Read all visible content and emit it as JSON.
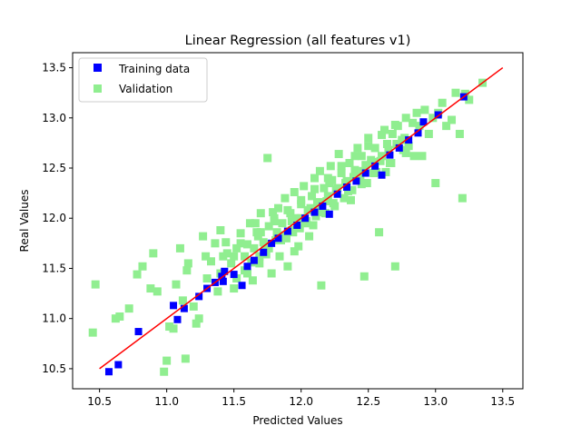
{
  "chart_data": {
    "type": "scatter",
    "title": "Linear Regression (all features v1)",
    "xlabel": "Predicted Values",
    "ylabel": "Real Values",
    "xlim": [
      10.3,
      13.65
    ],
    "ylim": [
      10.3,
      13.65
    ],
    "xticks": [
      "10.5",
      "11.0",
      "11.5",
      "12.0",
      "12.5",
      "13.0",
      "13.5"
    ],
    "yticks": [
      "10.5",
      "11.0",
      "11.5",
      "12.0",
      "12.5",
      "13.0",
      "13.5"
    ],
    "legend_position": "upper-left",
    "grid": false,
    "series": [
      {
        "name": "Training data",
        "marker": "square",
        "color": "#0000ff",
        "points": [
          [
            10.57,
            10.47
          ],
          [
            10.64,
            10.54
          ],
          [
            10.79,
            10.87
          ],
          [
            11.05,
            11.13
          ],
          [
            11.08,
            10.99
          ],
          [
            11.13,
            11.1
          ],
          [
            11.24,
            11.22
          ],
          [
            11.3,
            11.3
          ],
          [
            11.36,
            11.36
          ],
          [
            11.41,
            11.42
          ],
          [
            11.43,
            11.47
          ],
          [
            11.42,
            11.37
          ],
          [
            11.5,
            11.44
          ],
          [
            11.56,
            11.33
          ],
          [
            11.6,
            11.52
          ],
          [
            11.65,
            11.58
          ],
          [
            11.72,
            11.66
          ],
          [
            11.78,
            11.75
          ],
          [
            11.83,
            11.8
          ],
          [
            11.9,
            11.87
          ],
          [
            11.97,
            11.93
          ],
          [
            12.03,
            12.0
          ],
          [
            12.1,
            12.06
          ],
          [
            12.16,
            12.12
          ],
          [
            12.21,
            12.04
          ],
          [
            12.27,
            12.24
          ],
          [
            12.34,
            12.31
          ],
          [
            12.41,
            12.37
          ],
          [
            12.48,
            12.45
          ],
          [
            12.55,
            12.52
          ],
          [
            12.6,
            12.43
          ],
          [
            12.66,
            12.63
          ],
          [
            12.73,
            12.7
          ],
          [
            12.8,
            12.78
          ],
          [
            12.87,
            12.85
          ],
          [
            12.91,
            12.96
          ],
          [
            13.02,
            13.03
          ],
          [
            13.21,
            13.21
          ]
        ]
      },
      {
        "name": "Validation",
        "marker": "square",
        "color": "#90ee90",
        "points": [
          [
            10.45,
            10.86
          ],
          [
            10.47,
            11.34
          ],
          [
            10.62,
            11.0
          ],
          [
            10.65,
            11.02
          ],
          [
            10.72,
            11.1
          ],
          [
            10.78,
            11.44
          ],
          [
            10.82,
            11.52
          ],
          [
            10.88,
            11.3
          ],
          [
            10.9,
            11.65
          ],
          [
            10.93,
            11.27
          ],
          [
            10.98,
            10.47
          ],
          [
            11.0,
            10.58
          ],
          [
            11.02,
            10.92
          ],
          [
            11.05,
            10.9
          ],
          [
            11.07,
            11.34
          ],
          [
            11.1,
            11.7
          ],
          [
            11.12,
            11.18
          ],
          [
            11.14,
            10.6
          ],
          [
            11.15,
            11.48
          ],
          [
            11.16,
            11.55
          ],
          [
            11.2,
            11.12
          ],
          [
            11.22,
            10.95
          ],
          [
            11.24,
            11.0
          ],
          [
            11.27,
            11.82
          ],
          [
            11.29,
            11.62
          ],
          [
            11.3,
            11.4
          ],
          [
            11.33,
            11.57
          ],
          [
            11.36,
            11.75
          ],
          [
            11.38,
            11.27
          ],
          [
            11.4,
            11.88
          ],
          [
            11.42,
            11.62
          ],
          [
            11.44,
            11.76
          ],
          [
            11.48,
            11.55
          ],
          [
            11.5,
            11.3
          ],
          [
            11.52,
            11.7
          ],
          [
            11.55,
            11.85
          ],
          [
            11.58,
            11.62
          ],
          [
            11.6,
            11.45
          ],
          [
            11.62,
            11.95
          ],
          [
            11.64,
            11.38
          ],
          [
            11.65,
            11.7
          ],
          [
            11.67,
            11.86
          ],
          [
            11.69,
            11.55
          ],
          [
            11.7,
            12.05
          ],
          [
            11.72,
            11.76
          ],
          [
            11.74,
            11.64
          ],
          [
            11.75,
            12.6
          ],
          [
            11.76,
            11.92
          ],
          [
            11.78,
            11.45
          ],
          [
            11.8,
            12.0
          ],
          [
            11.81,
            11.78
          ],
          [
            11.83,
            12.1
          ],
          [
            11.84,
            11.62
          ],
          [
            11.86,
            11.95
          ],
          [
            11.88,
            12.2
          ],
          [
            11.89,
            11.8
          ],
          [
            11.9,
            11.52
          ],
          [
            11.92,
            12.05
          ],
          [
            11.93,
            11.88
          ],
          [
            11.95,
            12.26
          ],
          [
            11.96,
            12.0
          ],
          [
            11.98,
            11.72
          ],
          [
            11.99,
            11.9
          ],
          [
            12.0,
            12.14
          ],
          [
            12.02,
            12.32
          ],
          [
            12.03,
            11.95
          ],
          [
            12.05,
            12.08
          ],
          [
            12.06,
            11.82
          ],
          [
            12.08,
            12.22
          ],
          [
            12.1,
            12.4
          ],
          [
            12.11,
            12.02
          ],
          [
            12.13,
            12.16
          ],
          [
            12.14,
            12.47
          ],
          [
            12.15,
            11.33
          ],
          [
            12.17,
            12.3
          ],
          [
            12.18,
            12.05
          ],
          [
            12.2,
            12.22
          ],
          [
            12.22,
            12.52
          ],
          [
            12.23,
            12.38
          ],
          [
            12.25,
            12.12
          ],
          [
            12.27,
            12.3
          ],
          [
            12.28,
            12.64
          ],
          [
            12.3,
            12.45
          ],
          [
            12.32,
            12.2
          ],
          [
            12.34,
            12.37
          ],
          [
            12.36,
            12.55
          ],
          [
            12.38,
            12.28
          ],
          [
            12.4,
            12.48
          ],
          [
            12.42,
            12.7
          ],
          [
            12.44,
            12.4
          ],
          [
            12.45,
            12.62
          ],
          [
            12.47,
            11.42
          ],
          [
            12.48,
            12.53
          ],
          [
            12.5,
            12.8
          ],
          [
            12.52,
            12.58
          ],
          [
            12.54,
            12.45
          ],
          [
            12.55,
            12.7
          ],
          [
            12.58,
            11.86
          ],
          [
            12.6,
            12.62
          ],
          [
            12.62,
            12.88
          ],
          [
            12.64,
            12.74
          ],
          [
            12.66,
            12.55
          ],
          [
            12.68,
            12.84
          ],
          [
            12.7,
            11.52
          ],
          [
            12.72,
            12.92
          ],
          [
            12.75,
            12.78
          ],
          [
            12.78,
            13.0
          ],
          [
            12.8,
            12.72
          ],
          [
            12.83,
            12.95
          ],
          [
            12.86,
            13.05
          ],
          [
            12.88,
            12.92
          ],
          [
            12.9,
            12.62
          ],
          [
            12.92,
            13.08
          ],
          [
            12.95,
            12.84
          ],
          [
            12.98,
            13.0
          ],
          [
            13.0,
            12.35
          ],
          [
            13.02,
            13.05
          ],
          [
            13.05,
            13.15
          ],
          [
            13.08,
            12.92
          ],
          [
            13.12,
            12.98
          ],
          [
            13.15,
            13.25
          ],
          [
            13.18,
            12.84
          ],
          [
            13.2,
            12.2
          ],
          [
            13.22,
            13.24
          ],
          [
            13.25,
            13.18
          ],
          [
            13.35,
            13.35
          ],
          [
            11.45,
            11.65
          ],
          [
            11.55,
            11.75
          ],
          [
            11.68,
            11.82
          ],
          [
            11.73,
            11.73
          ],
          [
            11.82,
            11.86
          ],
          [
            11.87,
            11.83
          ],
          [
            11.93,
            11.97
          ],
          [
            12.0,
            12.0
          ],
          [
            12.07,
            12.1
          ],
          [
            12.12,
            12.14
          ],
          [
            12.19,
            12.17
          ],
          [
            12.26,
            12.28
          ],
          [
            12.33,
            12.35
          ],
          [
            12.39,
            12.41
          ],
          [
            12.46,
            12.47
          ],
          [
            12.53,
            12.56
          ],
          [
            12.59,
            12.57
          ],
          [
            12.65,
            12.68
          ],
          [
            12.71,
            12.74
          ],
          [
            12.77,
            12.8
          ],
          [
            11.58,
            11.48
          ],
          [
            11.63,
            11.56
          ],
          [
            11.69,
            11.62
          ],
          [
            11.76,
            11.7
          ],
          [
            11.85,
            11.78
          ],
          [
            11.94,
            11.86
          ],
          [
            12.04,
            11.97
          ],
          [
            12.13,
            12.06
          ],
          [
            12.24,
            12.15
          ],
          [
            12.35,
            12.27
          ],
          [
            12.45,
            12.34
          ],
          [
            12.56,
            12.46
          ],
          [
            12.67,
            12.55
          ],
          [
            12.78,
            12.65
          ],
          [
            11.5,
            11.62
          ],
          [
            11.6,
            11.74
          ],
          [
            11.7,
            11.86
          ],
          [
            11.8,
            11.97
          ],
          [
            11.9,
            12.08
          ],
          [
            12.0,
            12.18
          ],
          [
            12.1,
            12.29
          ],
          [
            12.2,
            12.4
          ],
          [
            12.3,
            12.52
          ],
          [
            12.4,
            12.62
          ],
          [
            12.5,
            12.72
          ],
          [
            12.6,
            12.83
          ],
          [
            12.7,
            12.93
          ],
          [
            11.4,
            11.45
          ],
          [
            11.52,
            11.4
          ],
          [
            11.66,
            11.95
          ],
          [
            11.79,
            12.06
          ],
          [
            11.95,
            11.67
          ],
          [
            12.09,
            11.93
          ],
          [
            12.21,
            12.35
          ],
          [
            12.37,
            12.18
          ],
          [
            12.49,
            12.35
          ],
          [
            12.63,
            12.46
          ],
          [
            12.76,
            12.68
          ],
          [
            12.84,
            12.62
          ]
        ]
      }
    ],
    "reference_line": {
      "color": "#ff0000",
      "from": [
        10.5,
        10.5
      ],
      "to": [
        13.5,
        13.5
      ]
    }
  }
}
